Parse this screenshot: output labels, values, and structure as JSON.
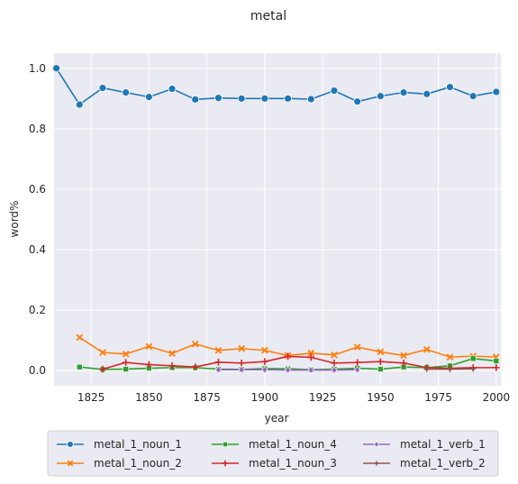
{
  "chart_data": {
    "type": "line",
    "title": "metal",
    "xlabel": "year",
    "ylabel": "word%",
    "xlim": [
      1809,
      2002
    ],
    "ylim": [
      -0.05,
      1.05
    ],
    "xticks": [
      1825,
      1850,
      1875,
      1900,
      1925,
      1950,
      1975,
      2000
    ],
    "yticks": [
      0.0,
      0.2,
      0.4,
      0.6,
      0.8,
      1.0
    ],
    "xtick_labels": [
      "1825",
      "1850",
      "1875",
      "1900",
      "1925",
      "1950",
      "1975",
      "2000"
    ],
    "ytick_labels": [
      "0.0",
      "0.2",
      "0.4",
      "0.6",
      "0.8",
      "1.0"
    ],
    "grid": true,
    "legend_position": "bottom",
    "series": [
      {
        "name": "metal_1_noun_1",
        "color": "#1f77b4",
        "marker": "circle",
        "x": [
          1810,
          1820,
          1830,
          1840,
          1850,
          1860,
          1870,
          1880,
          1890,
          1900,
          1910,
          1920,
          1930,
          1940,
          1950,
          1960,
          1970,
          1980,
          1990,
          2000
        ],
        "y": [
          1.0,
          0.88,
          0.935,
          0.92,
          0.905,
          0.932,
          0.897,
          0.902,
          0.9,
          0.9,
          0.9,
          0.898,
          0.926,
          0.89,
          0.908,
          0.92,
          0.915,
          0.938,
          0.908,
          0.922
        ]
      },
      {
        "name": "metal_1_noun_2",
        "color": "#ff7f0e",
        "marker": "x",
        "x": [
          1820,
          1830,
          1840,
          1850,
          1860,
          1870,
          1880,
          1890,
          1900,
          1910,
          1920,
          1930,
          1940,
          1950,
          1960,
          1970,
          1980,
          1990,
          2000
        ],
        "y": [
          0.11,
          0.06,
          0.055,
          0.08,
          0.057,
          0.088,
          0.067,
          0.073,
          0.067,
          0.05,
          0.058,
          0.052,
          0.078,
          0.062,
          0.05,
          0.07,
          0.045,
          0.048,
          0.045
        ]
      },
      {
        "name": "metal_1_noun_4",
        "color": "#2ca02c",
        "marker": "square",
        "x": [
          1820,
          1830,
          1840,
          1850,
          1860,
          1870,
          1880,
          1890,
          1900,
          1910,
          1920,
          1930,
          1940,
          1950,
          1960,
          1970,
          1980,
          1990,
          2000
        ],
        "y": [
          0.012,
          0.004,
          0.005,
          0.008,
          0.01,
          0.01,
          0.005,
          0.004,
          0.007,
          0.006,
          0.003,
          0.005,
          0.008,
          0.005,
          0.012,
          0.01,
          0.016,
          0.04,
          0.032
        ]
      },
      {
        "name": "metal_1_noun_3",
        "color": "#d62728",
        "marker": "plus",
        "x": [
          1830,
          1840,
          1850,
          1860,
          1870,
          1880,
          1890,
          1900,
          1910,
          1920,
          1930,
          1940,
          1950,
          1960,
          1970,
          1980,
          1990,
          2000
        ],
        "y": [
          0.005,
          0.027,
          0.02,
          0.016,
          0.012,
          0.028,
          0.025,
          0.03,
          0.047,
          0.044,
          0.025,
          0.027,
          0.03,
          0.025,
          0.01,
          0.008,
          0.01,
          0.01
        ]
      },
      {
        "name": "metal_1_verb_1",
        "color": "#9467bd",
        "marker": "diamond",
        "x": [
          1880,
          1890,
          1900,
          1910,
          1920,
          1930,
          1940
        ],
        "y": [
          0.003,
          0.003,
          0.003,
          0.002,
          0.002,
          0.002,
          0.003
        ]
      },
      {
        "name": "metal_1_verb_2",
        "color": "#8c564b",
        "marker": "star",
        "x": [
          1970,
          1980,
          1990
        ],
        "y": [
          0.005,
          0.005,
          0.006
        ]
      }
    ]
  }
}
